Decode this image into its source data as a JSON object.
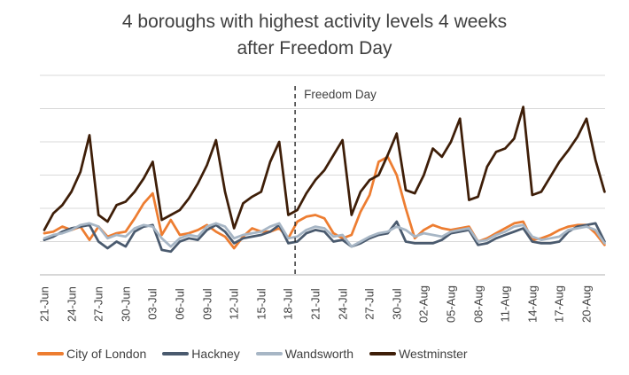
{
  "title": {
    "line1": "4 boroughs with highest activity levels 4 weeks",
    "line2": "after Freedom Day"
  },
  "annotation": {
    "label": "Freedom Day",
    "x_index": 28
  },
  "chart_data": {
    "type": "line",
    "title": "4 boroughs with highest activity levels 4 weeks after Freedom Day",
    "xlabel": "",
    "ylabel": "",
    "x_tick_labels": [
      "21-Jun",
      "24-Jun",
      "27-Jun",
      "30-Jun",
      "03-Jul",
      "06-Jul",
      "09-Jul",
      "12-Jul",
      "15-Jul",
      "18-Jul",
      "21-Jul",
      "24-Jul",
      "27-Jul",
      "30-Jul",
      "02-Aug",
      "05-Aug",
      "08-Aug",
      "11-Aug",
      "14-Aug",
      "17-Aug",
      "20-Aug"
    ],
    "label_every_n_points": 3,
    "n_points": 63,
    "ylim": [
      0,
      6
    ],
    "y_gridline_step": 1,
    "grid": true,
    "y_axis_labels_visible": false,
    "legend_position": "bottom",
    "annotation_line": {
      "label": "Freedom Day",
      "style": "dashed-vertical",
      "x_index": 28
    },
    "series": [
      {
        "name": "City of London",
        "color": "#ED7D31",
        "values": [
          1.25,
          1.3,
          1.45,
          1.35,
          1.45,
          1.05,
          1.45,
          1.15,
          1.25,
          1.3,
          1.7,
          2.15,
          2.45,
          1.2,
          1.65,
          1.2,
          1.25,
          1.35,
          1.5,
          1.3,
          1.15,
          0.8,
          1.15,
          1.4,
          1.3,
          1.3,
          1.4,
          1.1,
          1.6,
          1.75,
          1.8,
          1.7,
          1.25,
          1.1,
          1.2,
          1.9,
          2.4,
          3.4,
          3.55,
          3.0,
          2.0,
          1.1,
          1.35,
          1.5,
          1.4,
          1.35,
          1.4,
          1.45,
          1.0,
          1.1,
          1.25,
          1.4,
          1.55,
          1.6,
          1.05,
          1.1,
          1.2,
          1.35,
          1.45,
          1.5,
          1.5,
          1.25,
          0.9
        ]
      },
      {
        "name": "Hackney",
        "color": "#4A5A6E",
        "values": [
          1.05,
          1.15,
          1.3,
          1.4,
          1.45,
          1.5,
          1.0,
          0.8,
          1.0,
          0.85,
          1.3,
          1.45,
          1.5,
          0.75,
          0.7,
          1.0,
          1.1,
          1.05,
          1.35,
          1.5,
          1.3,
          0.95,
          1.1,
          1.15,
          1.2,
          1.3,
          1.5,
          0.95,
          1.0,
          1.25,
          1.35,
          1.3,
          1.0,
          1.05,
          0.85,
          0.95,
          1.1,
          1.2,
          1.25,
          1.6,
          1.0,
          0.95,
          0.95,
          0.95,
          1.05,
          1.25,
          1.3,
          1.35,
          0.9,
          0.95,
          1.1,
          1.2,
          1.3,
          1.4,
          1.0,
          0.95,
          0.95,
          1.0,
          1.3,
          1.45,
          1.5,
          1.55,
          1.0
        ]
      },
      {
        "name": "Wandsworth",
        "color": "#A7B6C5",
        "values": [
          1.1,
          1.2,
          1.25,
          1.35,
          1.5,
          1.55,
          1.45,
          1.1,
          1.2,
          1.15,
          1.4,
          1.5,
          1.45,
          1.1,
          0.85,
          1.1,
          1.2,
          1.15,
          1.45,
          1.55,
          1.45,
          1.1,
          1.2,
          1.25,
          1.3,
          1.45,
          1.55,
          1.1,
          1.15,
          1.35,
          1.45,
          1.4,
          1.15,
          1.2,
          0.85,
          1.0,
          1.15,
          1.25,
          1.3,
          1.45,
          1.35,
          1.15,
          1.25,
          1.2,
          1.15,
          1.3,
          1.35,
          1.4,
          1.0,
          1.05,
          1.2,
          1.3,
          1.45,
          1.5,
          1.15,
          1.05,
          1.1,
          1.15,
          1.35,
          1.4,
          1.45,
          1.35,
          0.95
        ]
      },
      {
        "name": "Westminster",
        "color": "#3E1E08",
        "values": [
          1.35,
          1.85,
          2.1,
          2.5,
          3.1,
          4.2,
          1.8,
          1.6,
          2.1,
          2.2,
          2.5,
          2.9,
          3.4,
          1.65,
          1.8,
          1.95,
          2.3,
          2.75,
          3.3,
          4.05,
          2.5,
          1.4,
          2.15,
          2.35,
          2.5,
          3.4,
          4.0,
          1.8,
          1.95,
          2.45,
          2.85,
          3.15,
          3.6,
          4.05,
          1.8,
          2.5,
          2.85,
          3.0,
          3.6,
          4.25,
          2.55,
          2.45,
          3.0,
          3.8,
          3.55,
          4.0,
          4.7,
          2.25,
          2.35,
          3.25,
          3.7,
          3.8,
          4.1,
          5.05,
          2.4,
          2.5,
          2.95,
          3.4,
          3.75,
          4.15,
          4.7,
          3.45,
          2.5
        ]
      }
    ]
  },
  "colors": {
    "title_text": "#3F3F3F",
    "axis_text": "#404040",
    "gridline": "#D9D9D9",
    "axis_line": "#BFBFBF",
    "annotation_line": "#262626",
    "background": "#FFFFFF"
  }
}
